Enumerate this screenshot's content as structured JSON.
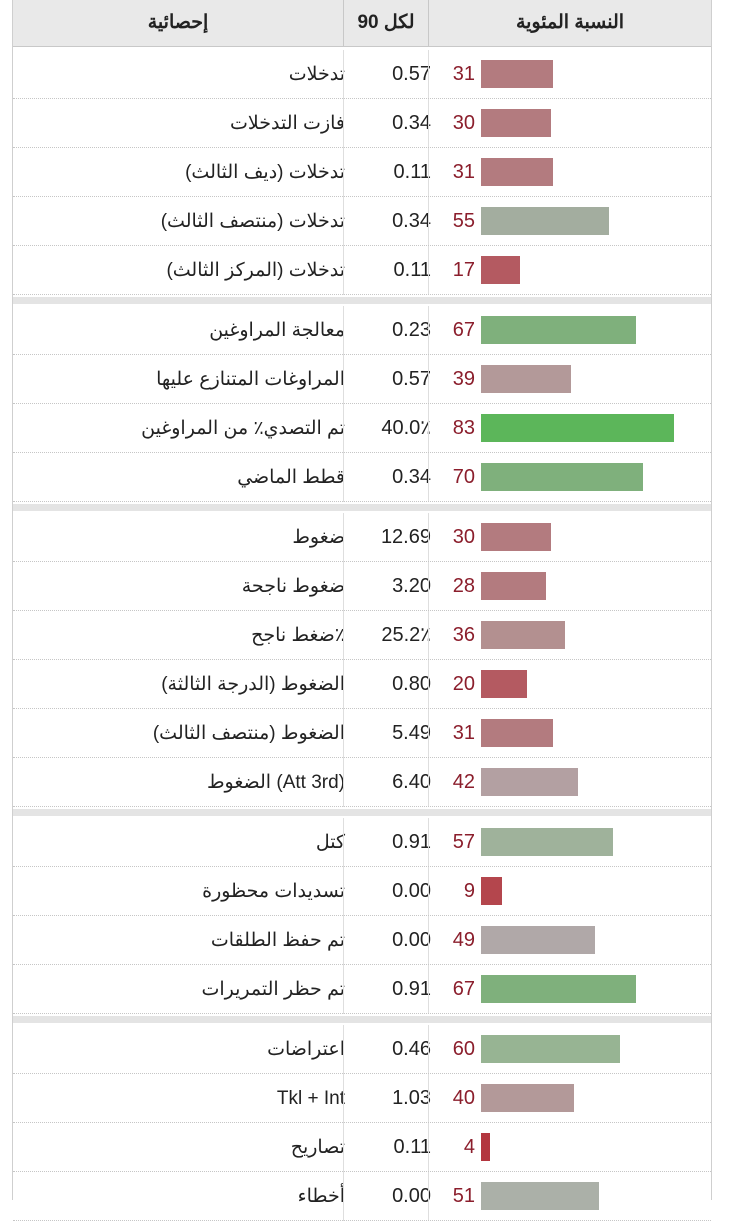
{
  "header": {
    "stat": "إحصائية",
    "per90": "لكل 90",
    "percentile": "النسبة المئوية"
  },
  "groups": [
    [
      {
        "label": "تدخلات",
        "per90": "0.57",
        "pct": "31",
        "value": 31,
        "color": "#b37b7f"
      },
      {
        "label": "فازت التدخلات",
        "per90": "0.34",
        "pct": "30",
        "value": 30,
        "color": "#b37b7f"
      },
      {
        "label": "تدخلات (ديف الثالث)",
        "per90": "0.11",
        "pct": "31",
        "value": 31,
        "color": "#b37b7f"
      },
      {
        "label": "تدخلات (منتصف الثالث)",
        "per90": "0.34",
        "pct": "55",
        "value": 55,
        "color": "#a3ad9f"
      },
      {
        "label": "تدخلات (المركز الثالث)",
        "per90": "0.11",
        "pct": "17",
        "value": 17,
        "color": "#b45a61"
      }
    ],
    [
      {
        "label": "معالجة المراوغين",
        "per90": "0.23",
        "pct": "67",
        "value": 67,
        "color": "#7fb07c"
      },
      {
        "label": "المراوغات المتنازع عليها",
        "per90": "0.57",
        "pct": "39",
        "value": 39,
        "color": "#b39999"
      },
      {
        "label": "تم التصدي٪ من المراوغين",
        "per90": "40.0٪",
        "pct": "83",
        "value": 83,
        "color": "#5cb65a"
      },
      {
        "label": "قطط الماضي",
        "per90": "0.34",
        "pct": "70",
        "value": 70,
        "color": "#7fb07c"
      }
    ],
    [
      {
        "label": "ضغوط",
        "per90": "12.69",
        "pct": "30",
        "value": 30,
        "color": "#b37b7f"
      },
      {
        "label": "ضغوط ناجحة",
        "per90": "3.20",
        "pct": "28",
        "value": 28,
        "color": "#b37b7f"
      },
      {
        "label": "٪ضغط ناجح",
        "per90": "25.2٪",
        "pct": "36",
        "value": 36,
        "color": "#b39090"
      },
      {
        "label": "الضغوط (الدرجة الثالثة)",
        "per90": "0.80",
        "pct": "20",
        "value": 20,
        "color": "#b45a61"
      },
      {
        "label": "الضغوط (منتصف الثالث)",
        "per90": "5.49",
        "pct": "31",
        "value": 31,
        "color": "#b37b7f"
      },
      {
        "label": "(Att 3rd) الضغوط",
        "per90": "6.40",
        "pct": "42",
        "value": 42,
        "color": "#b3a0a2"
      }
    ],
    [
      {
        "label": "كتل",
        "per90": "0.91",
        "pct": "57",
        "value": 57,
        "color": "#9fb29b"
      },
      {
        "label": "تسديدات محظورة",
        "per90": "0.00",
        "pct": "9",
        "value": 9,
        "color": "#b4464d"
      },
      {
        "label": "تم حفظ الطلقات",
        "per90": "0.00",
        "pct": "49",
        "value": 49,
        "color": "#b0a8a8"
      },
      {
        "label": "تم حظر التمريرات",
        "per90": "0.91",
        "pct": "67",
        "value": 67,
        "color": "#7fb07c"
      }
    ],
    [
      {
        "label": "اعتراضات",
        "per90": "0.46",
        "pct": "60",
        "value": 60,
        "color": "#97b493"
      },
      {
        "label": "Tkl + Int",
        "per90": "1.03",
        "pct": "40",
        "value": 40,
        "color": "#b39999"
      },
      {
        "label": "تصاريح",
        "per90": "0.11",
        "pct": "4",
        "value": 4,
        "color": "#b3363f"
      },
      {
        "label": "أخطاء",
        "per90": "0.00",
        "pct": "51",
        "value": 51,
        "color": "#abb0a8"
      }
    ]
  ]
}
